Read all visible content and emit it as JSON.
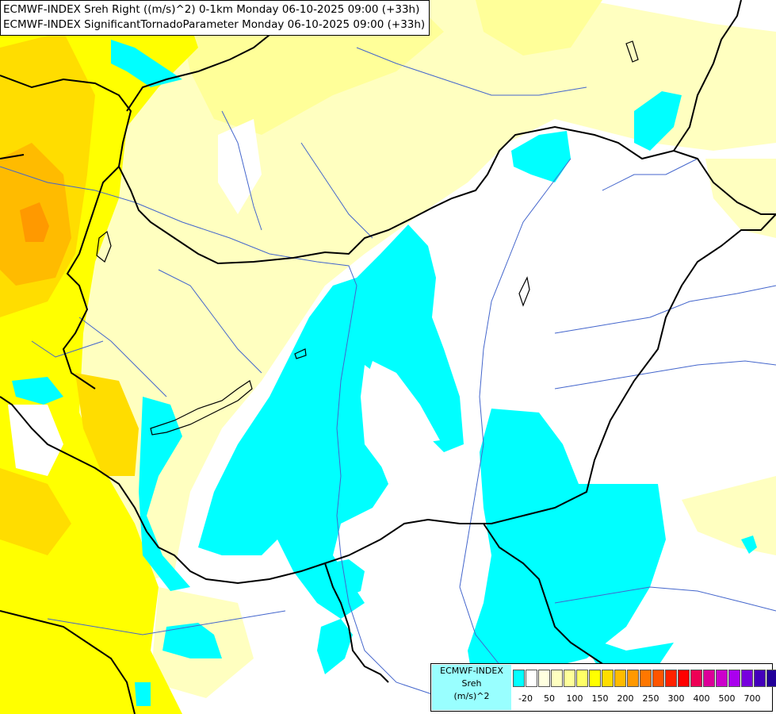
{
  "header": {
    "line1": "ECMWF-INDEX Sreh Right ((m/s)^2) 0-1km Monday 06-10-2025 09:00 (+33h)",
    "line2": "ECMWF-INDEX SignificantTornadoParameter Monday 06-10-2025 09:00 (+33h)"
  },
  "legend": {
    "title_line1": "ECMWF-INDEX",
    "title_line2": "Sreh",
    "title_line3": "(m/s)^2",
    "colors": [
      "#00ffff",
      "#ffffff",
      "#ffffe0",
      "#ffffc0",
      "#ffff99",
      "#ffff66",
      "#ffff00",
      "#ffdd00",
      "#ffbb00",
      "#ff9900",
      "#ff7700",
      "#ff5500",
      "#ff2200",
      "#ff0000",
      "#ee0055",
      "#dd0099",
      "#cc00cc",
      "#aa00ee",
      "#7700dd",
      "#4400bb",
      "#220099",
      "#000066"
    ],
    "tick_labels": [
      "-20",
      "50",
      "100",
      "150",
      "200",
      "250",
      "300",
      "400",
      "500",
      "700"
    ]
  },
  "map": {
    "field": "Sreh Right 0-1km",
    "units": "(m/s)^2",
    "colors": {
      "cyan": "#00ffff",
      "pale_yellow": "#ffffc0",
      "light_yellow": "#ffff99",
      "yellow": "#ffff00",
      "gold": "#ffdd00",
      "orange": "#ffbb00",
      "dark_orange": "#ff9900",
      "border": "#000000",
      "river": "#4466cc"
    }
  }
}
